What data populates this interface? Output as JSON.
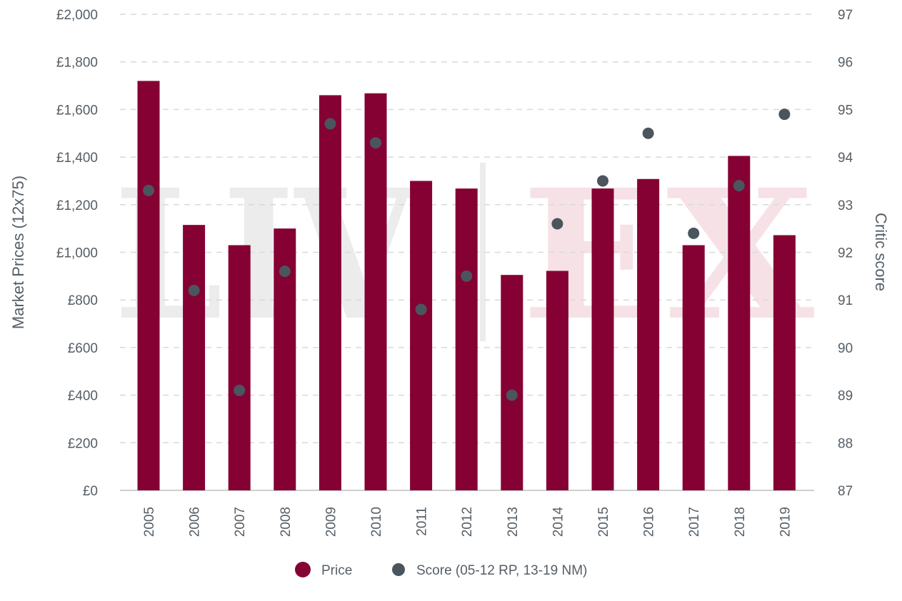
{
  "chart_data": {
    "type": "bar",
    "categories": [
      "2005",
      "2006",
      "2007",
      "2008",
      "2009",
      "2010",
      "2011",
      "2012",
      "2013",
      "2014",
      "2015",
      "2016",
      "2017",
      "2018",
      "2019"
    ],
    "series": [
      {
        "name": "Price",
        "type": "bar",
        "axis": "left",
        "values": [
          1720,
          1115,
          1030,
          1100,
          1660,
          1668,
          1300,
          1268,
          905,
          922,
          1268,
          1308,
          1030,
          1405,
          1072
        ]
      },
      {
        "name": "Score (05-12 RP, 13-19 NM)",
        "type": "scatter",
        "axis": "right",
        "values": [
          93.3,
          91.2,
          89.1,
          91.6,
          94.7,
          94.3,
          90.8,
          91.5,
          89.0,
          92.6,
          93.5,
          94.5,
          92.4,
          93.4,
          94.9
        ]
      }
    ],
    "ylabel": "Market Prices (12x75)",
    "ylim": [
      0,
      2000
    ],
    "yticks": [
      "£0",
      "£200",
      "£400",
      "£600",
      "£800",
      "£1,000",
      "£1,200",
      "£1,400",
      "£1,600",
      "£1,800",
      "£2,000"
    ],
    "y2label": "Critic score",
    "y2lim": [
      87,
      97
    ],
    "y2ticks": [
      "87",
      "88",
      "89",
      "90",
      "91",
      "92",
      "93",
      "94",
      "95",
      "96",
      "97"
    ],
    "grid": true,
    "legend_position": "bottom",
    "colors": {
      "price": "#850033",
      "score": "#4b555e",
      "grid": "#d9d9d9",
      "text": "#555e66"
    },
    "watermark": "LIV-EX"
  }
}
